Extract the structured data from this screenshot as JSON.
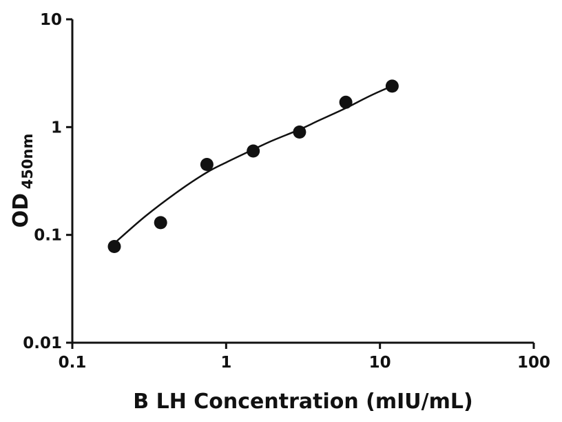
{
  "figure": {
    "background_color": "#ffffff",
    "axis_color": "#111111"
  },
  "chart_data": {
    "type": "scatter",
    "title": "",
    "xlabel": "B LH Concentration (mIU/mL)",
    "ylabel": "OD",
    "ylabel_subscript": "450nm",
    "x_scale": "log",
    "y_scale": "log",
    "xlim": [
      0.1,
      100
    ],
    "ylim": [
      0.01,
      10
    ],
    "x_ticks": [
      0.1,
      1,
      10,
      100
    ],
    "x_tick_labels": [
      "0.1",
      "1",
      "10",
      "100"
    ],
    "y_ticks": [
      0.01,
      0.1,
      1,
      10
    ],
    "y_tick_labels": [
      "0.01",
      "0.1",
      "1",
      "10"
    ],
    "grid": false,
    "legend": "none",
    "marker_color": "#111111",
    "line_color": "#111111",
    "points": [
      {
        "x": 0.1875,
        "y": 0.078
      },
      {
        "x": 0.375,
        "y": 0.13
      },
      {
        "x": 0.75,
        "y": 0.45
      },
      {
        "x": 1.5,
        "y": 0.6
      },
      {
        "x": 3,
        "y": 0.9
      },
      {
        "x": 6,
        "y": 1.7
      },
      {
        "x": 12,
        "y": 2.4
      }
    ],
    "fit_curve": [
      [
        0.19,
        0.085
      ],
      [
        0.3,
        0.15
      ],
      [
        0.5,
        0.26
      ],
      [
        0.75,
        0.38
      ],
      [
        1.0,
        0.47
      ],
      [
        1.5,
        0.62
      ],
      [
        2.0,
        0.75
      ],
      [
        3.0,
        0.95
      ],
      [
        4.0,
        1.15
      ],
      [
        6.0,
        1.5
      ],
      [
        8.0,
        1.85
      ],
      [
        10.0,
        2.15
      ],
      [
        12.0,
        2.4
      ]
    ]
  }
}
